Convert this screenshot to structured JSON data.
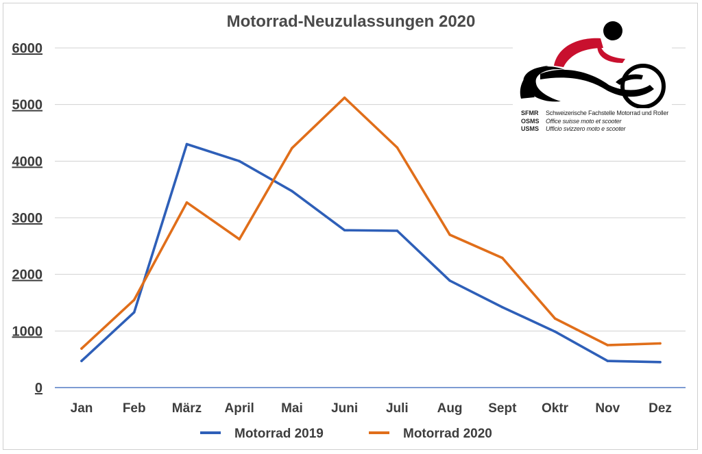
{
  "chart_data": {
    "type": "line",
    "title": "Motorrad-Neuzulassungen 2020",
    "categories": [
      "Jan",
      "Feb",
      "März",
      "April",
      "Mai",
      "Juni",
      "Juli",
      "Aug",
      "Sept",
      "Oktr",
      "Nov",
      "Dez"
    ],
    "ylim": [
      0,
      6000
    ],
    "yticks": [
      0,
      1000,
      2000,
      3000,
      4000,
      5000,
      6000
    ],
    "grid": true,
    "legend_position": "bottom",
    "series": [
      {
        "name": "Motorrad 2019",
        "color": "#2e5fb8",
        "values": [
          470,
          1330,
          4300,
          4000,
          3470,
          2780,
          2770,
          1890,
          1420,
          990,
          470,
          450
        ]
      },
      {
        "name": "Motorrad 2020",
        "color": "#e06e1a",
        "values": [
          690,
          1550,
          3270,
          2620,
          4230,
          5120,
          4240,
          2700,
          2290,
          1220,
          750,
          780
        ]
      }
    ]
  },
  "logo": {
    "rows": [
      {
        "abbr": "SFMR",
        "full": "Schweizerische Fachstelle Motorrad und Roller"
      },
      {
        "abbr": "OSMS",
        "full": "Office suisse moto et scooter"
      },
      {
        "abbr": "USMS",
        "full": "Ufficio svizzero moto e scooter"
      }
    ]
  }
}
